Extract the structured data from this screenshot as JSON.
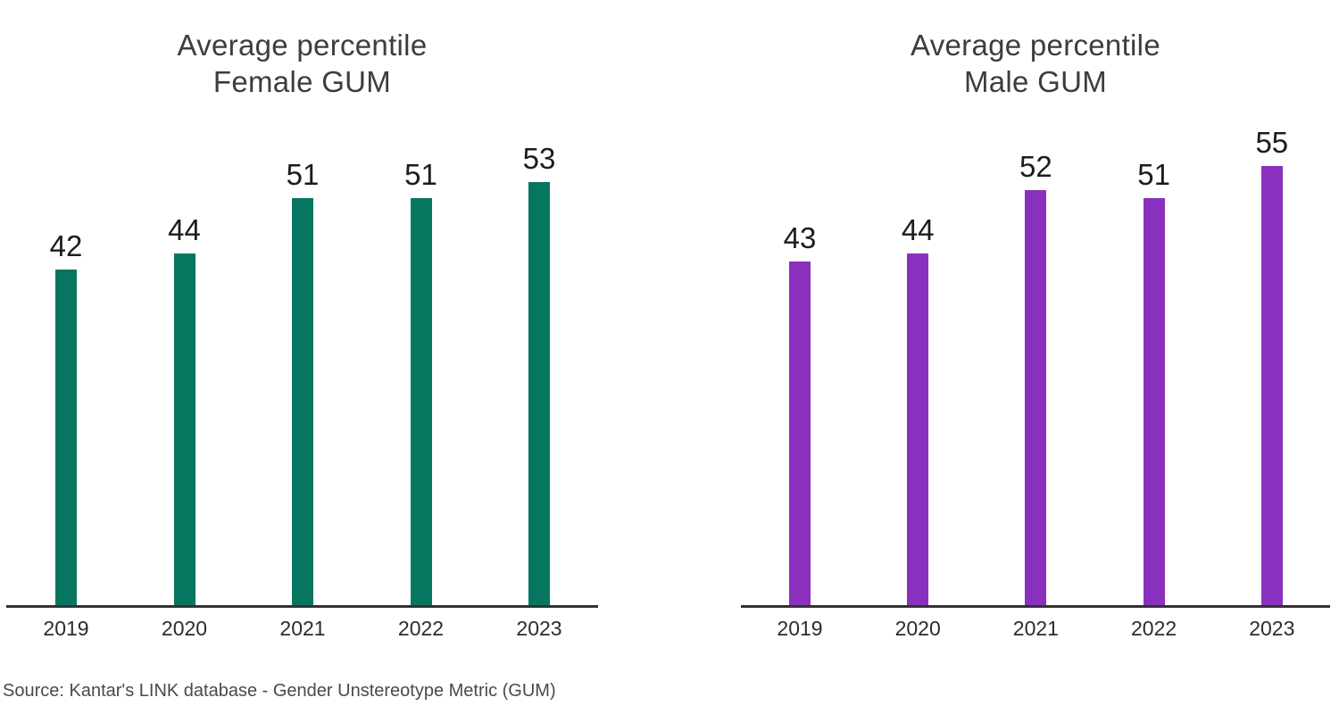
{
  "source": "Source: Kantar's LINK database - Gender Unstereotype Metric (GUM)",
  "chart_data": [
    {
      "type": "bar",
      "title": "Average percentile Female GUM",
      "title_line1": "Average percentile",
      "title_line2": "Female GUM",
      "categories": [
        "2019",
        "2020",
        "2021",
        "2022",
        "2023"
      ],
      "values": [
        42,
        44,
        51,
        51,
        53
      ],
      "bar_color": "#077661",
      "xlabel": "",
      "ylabel": "",
      "ylim": [
        0,
        62
      ],
      "grid": false,
      "legend": "none",
      "data_labels": true,
      "y_axis_visible": false
    },
    {
      "type": "bar",
      "title": "Average percentile Male GUM",
      "title_line1": "Average percentile",
      "title_line2": "Male GUM",
      "categories": [
        "2019",
        "2020",
        "2021",
        "2022",
        "2023"
      ],
      "values": [
        43,
        44,
        52,
        51,
        55
      ],
      "bar_color": "#8A30BE",
      "xlabel": "",
      "ylabel": "",
      "ylim": [
        0,
        62
      ],
      "grid": false,
      "legend": "none",
      "data_labels": true,
      "y_axis_visible": false
    }
  ],
  "colors": {
    "female_bar": "#077661",
    "male_bar": "#8A30BE",
    "title_text": "#3d3d3d",
    "value_text": "#1c1c1c",
    "axis_line": "#333333",
    "tick_text": "#2c2c2c",
    "source_text": "#4a4a4a",
    "background": "#ffffff"
  }
}
